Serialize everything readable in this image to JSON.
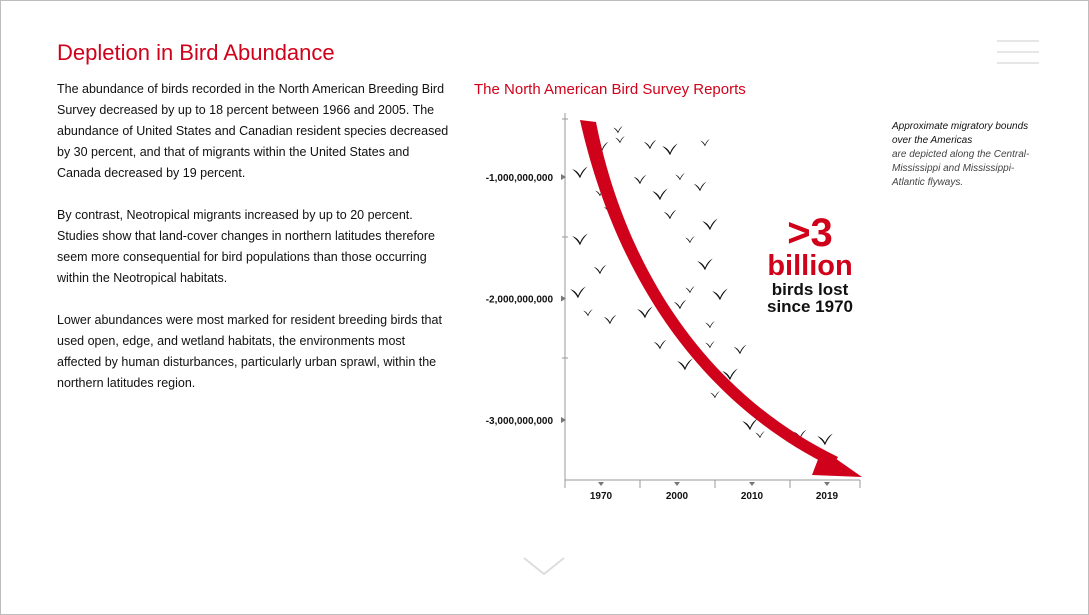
{
  "page": {
    "title": "Depletion in Bird Abundance",
    "paragraphs": [
      "The abundance of birds recorded in the North American Breeding Bird Survey decreased by up to 18 percent between 1966 and 2005. The abundance of United States and Canadian resident species decreased by 30 percent, and that of migrants within the United States and Canada decreased by 19 percent.",
      "By contrast, Neotropical migrants increased by up to 20 percent. Studies show that land-cover changes in northern latitudes therefore seem more consequential for bird populations than those occurring within the Neotropical habitats.",
      "Lower abundances were most marked for resident breeding birds that used open, edge, and wetland habitats, the environments most affected by human disturbances, particularly urban sprawl, within the northern latitudes region."
    ],
    "menu_icon": "hamburger-menu-icon",
    "scroll_icon": "chevron-down-icon"
  },
  "note": {
    "line1": "Approximate migratory bounds over the Americas",
    "line2": "are  depicted along the Central-Mississippi and Mississippi-Atlantic flyways."
  },
  "callout": {
    "big": ">3",
    "mid": "billion",
    "sub1": "birds lost",
    "sub2": "since 1970"
  },
  "colors": {
    "accent": "#d0021b",
    "text": "#111111",
    "axis": "#888888"
  },
  "chart_data": {
    "type": "line",
    "title": "The North American Bird Survey Reports",
    "x": [
      1970,
      2000,
      2010,
      2019
    ],
    "series": [
      {
        "values": [
          0,
          -1800000000,
          -2600000000,
          -3000000000
        ]
      }
    ],
    "y_ticks": [
      -1000000000,
      -2000000000,
      -3000000000
    ],
    "y_tick_labels": [
      "-1,000,000,000",
      "-2,000,000,000",
      "-3,000,000,000"
    ],
    "x_tick_labels": [
      "1970",
      "2000",
      "2010",
      "2019"
    ],
    "ylim": [
      -3500000000,
      500000000
    ],
    "grid": false
  }
}
